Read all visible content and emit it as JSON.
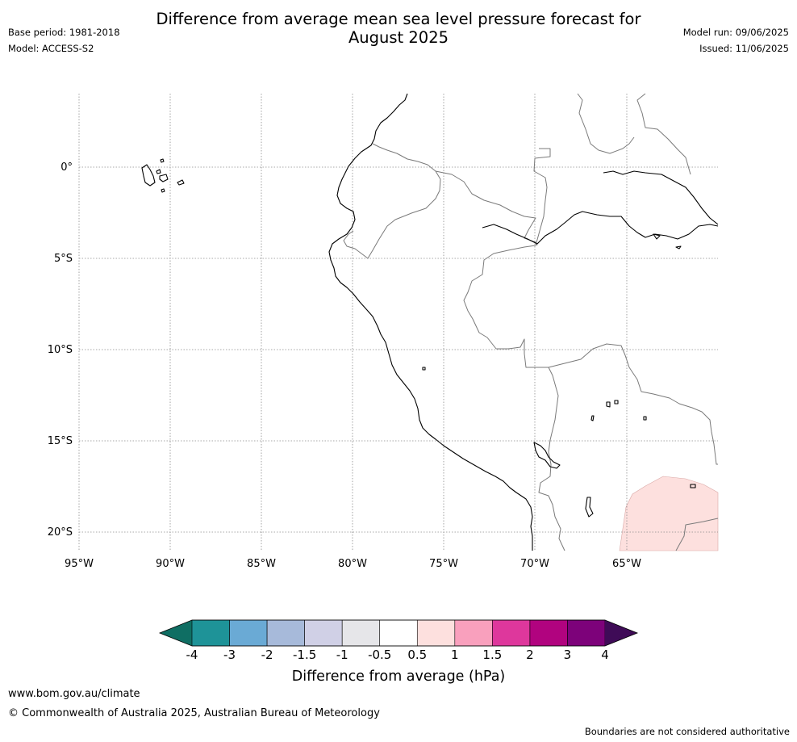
{
  "header": {
    "title_line1": "Difference from average mean sea level pressure forecast for",
    "title_line2": "August 2025",
    "base_period": "Base period: 1981-2018",
    "model": "Model: ACCESS-S2",
    "model_run": "Model run: 09/06/2025",
    "issued": "Issued: 11/06/2025"
  },
  "map": {
    "lon_ticks": [
      "95°W",
      "90°W",
      "85°W",
      "80°W",
      "75°W",
      "70°W",
      "65°W"
    ],
    "lat_ticks": [
      "0°",
      "5°S",
      "10°S",
      "15°S",
      "20°S"
    ],
    "colors": {
      "coastline": "#000000",
      "borders": "#7a7a7a",
      "grid": "#8c8c8c",
      "anomaly_fill": "#fde0de"
    },
    "anomaly_region": {
      "category": "0.5 to 1",
      "color": "#fde0de"
    }
  },
  "colorbar": {
    "label": "Difference from average (hPa)",
    "ticks": [
      "-4",
      "-3",
      "-2",
      "-1.5",
      "-1",
      "-0.5",
      "0.5",
      "1",
      "1.5",
      "2",
      "3",
      "4"
    ],
    "under_color": "#0f6e63",
    "over_color": "#3f0b57",
    "colors": [
      "#1e9398",
      "#6aaad5",
      "#a7bada",
      "#d0d0e6",
      "#e6e6e9",
      "#ffffff",
      "#fde0de",
      "#f9a0bd",
      "#de379c",
      "#b1037f",
      "#7d027a"
    ]
  },
  "footer": {
    "url": "www.bom.gov.au/climate",
    "copyright": "© Commonwealth of Australia 2025, Australian Bureau of Meteorology",
    "disclaimer": "Boundaries are not considered authoritative"
  }
}
